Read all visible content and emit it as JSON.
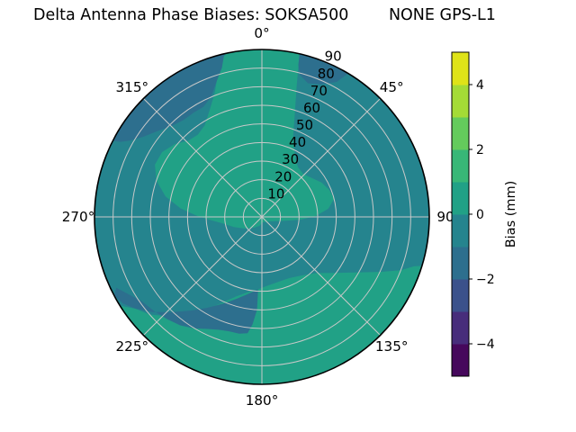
{
  "title": "Delta Antenna Phase Biases: SOKSA500        NONE GPS-L1",
  "chart_data": {
    "type": "heatmap",
    "projection": "polar-skyplot",
    "title": "Delta Antenna Phase Biases: SOKSA500        NONE GPS-L1",
    "station_label": "SOKSA500",
    "antenna_label": "NONE",
    "signal_label": "GPS-L1",
    "angular_ticks": [
      {
        "label": "0°",
        "deg": 0
      },
      {
        "label": "45°",
        "deg": 45
      },
      {
        "label": "90",
        "deg": 90
      },
      {
        "label": "135°",
        "deg": 135
      },
      {
        "label": "180°",
        "deg": 180
      },
      {
        "label": "225°",
        "deg": 225
      },
      {
        "label": "270°",
        "deg": 270
      },
      {
        "label": "315°",
        "deg": 315
      }
    ],
    "radial_ticks": [
      10,
      20,
      30,
      40,
      50,
      60,
      70,
      80,
      90
    ],
    "radial_axis_max": 90,
    "radial_label_angle_deg": 22.5,
    "grid": true,
    "colorbar": {
      "label": "Bias (mm)",
      "tick_labels": [
        "4",
        "2",
        "0",
        "−2",
        "−4"
      ],
      "tick_values": [
        4,
        2,
        0,
        -2,
        -4
      ],
      "vmin": -5,
      "vmax": 5,
      "band_colors_bottom_to_top": [
        "#46085c",
        "#472d7b",
        "#3b518b",
        "#2d6f8e",
        "#25848e",
        "#21a186",
        "#38b777",
        "#64cb5c",
        "#a4db36",
        "#dfe318"
      ]
    },
    "base_band": {
      "bias_mm": "-1 to 0",
      "color": "#25848e"
    },
    "regions": [
      {
        "name": "green-blob-center-northwest",
        "bias_mm": "0 to 1",
        "color": "#21a186",
        "rim": [
          348,
          373
        ],
        "inner": [
          [
            15,
            72
          ],
          [
            18,
            57
          ],
          [
            21,
            47
          ],
          [
            25,
            41
          ],
          [
            30,
            36
          ],
          [
            36,
            33
          ],
          [
            44,
            32
          ],
          [
            52,
            34
          ],
          [
            60,
            37
          ],
          [
            68,
            39
          ],
          [
            76,
            40
          ],
          [
            83,
            36
          ],
          [
            89,
            29
          ],
          [
            94,
            21
          ],
          [
            99,
            13
          ],
          [
            106,
            8
          ],
          [
            118,
            5
          ],
          [
            135,
            4
          ],
          [
            155,
            3
          ],
          [
            175,
            3
          ],
          [
            195,
            5
          ],
          [
            215,
            7
          ],
          [
            235,
            11
          ],
          [
            250,
            16
          ],
          [
            260,
            21
          ],
          [
            266,
            27
          ],
          [
            271,
            35
          ],
          [
            276,
            44
          ],
          [
            282,
            53
          ],
          [
            289,
            60
          ],
          [
            296,
            64
          ],
          [
            303,
            64
          ],
          [
            310,
            61
          ],
          [
            316,
            57
          ],
          [
            322,
            56
          ],
          [
            328,
            58
          ],
          [
            334,
            64
          ],
          [
            339,
            71
          ],
          [
            342,
            78
          ],
          [
            344,
            84
          ],
          [
            346,
            88
          ]
        ]
      },
      {
        "name": "green-blob-south",
        "bias_mm": "0 to 1",
        "color": "#21a186",
        "rim": [
          107,
          238
        ],
        "inner": [
          [
            234,
            84
          ],
          [
            229,
            80
          ],
          [
            222,
            72
          ],
          [
            214,
            62
          ],
          [
            206,
            52
          ],
          [
            198,
            45
          ],
          [
            190,
            41
          ],
          [
            183,
            39
          ],
          [
            175,
            37
          ],
          [
            166,
            36
          ],
          [
            156,
            36
          ],
          [
            146,
            38
          ],
          [
            136,
            42
          ],
          [
            128,
            49
          ],
          [
            121,
            58
          ],
          [
            115,
            70
          ],
          [
            111,
            80
          ],
          [
            108,
            86
          ]
        ]
      },
      {
        "name": "dark-band-southwest",
        "bias_mm": "-2 to -1",
        "color": "#2d6f8e",
        "poly": [
          [
            183,
            39
          ],
          [
            190,
            42
          ],
          [
            197,
            46
          ],
          [
            204,
            51
          ],
          [
            211,
            57
          ],
          [
            217,
            63
          ],
          [
            223,
            70
          ],
          [
            229,
            78
          ],
          [
            234,
            84
          ],
          [
            238,
            88
          ],
          [
            242,
            90
          ],
          [
            244,
            87
          ],
          [
            240,
            83
          ],
          [
            235,
            79
          ],
          [
            229,
            77
          ],
          [
            223,
            75
          ],
          [
            217,
            73
          ],
          [
            211,
            70
          ],
          [
            206,
            67
          ],
          [
            201,
            65
          ],
          [
            196,
            64
          ],
          [
            191,
            64
          ],
          [
            187,
            63
          ],
          [
            185,
            58
          ],
          [
            183,
            50
          ]
        ]
      },
      {
        "name": "dark-arc-northwest",
        "bias_mm": "-2 to -1",
        "color": "#2d6f8e",
        "rim": [
          297,
          347
        ],
        "inner": [
          [
            345,
            83
          ],
          [
            341,
            76
          ],
          [
            337,
            70
          ],
          [
            332,
            67
          ],
          [
            327,
            67
          ],
          [
            321,
            67
          ],
          [
            315,
            69
          ],
          [
            309,
            73
          ],
          [
            304,
            77
          ],
          [
            300,
            82
          ],
          [
            298,
            86
          ]
        ]
      },
      {
        "name": "dark-patch-north-northeast",
        "bias_mm": "-2 to -1",
        "color": "#2d6f8e",
        "rim": [
          13,
          31
        ],
        "inner": [
          [
            29,
            83
          ],
          [
            24,
            78
          ],
          [
            19,
            76
          ],
          [
            15,
            79
          ],
          [
            13.5,
            84
          ]
        ]
      }
    ]
  },
  "layout_colors": {
    "grid_line": "#c9c9c9",
    "rim": "#000000",
    "text": "#000000",
    "background": "#ffffff"
  }
}
